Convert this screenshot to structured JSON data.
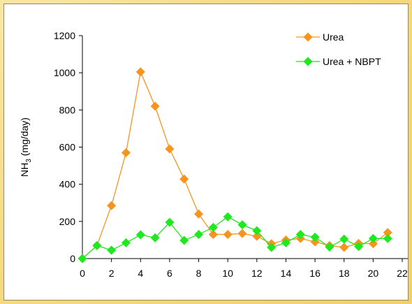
{
  "chart_data": {
    "type": "line",
    "title": "",
    "xlabel": "",
    "ylabel": {
      "main": "NH",
      "sub": "3",
      "rest": " (mg/day)"
    },
    "xlim": [
      0,
      22
    ],
    "ylim": [
      0,
      1200
    ],
    "x_ticks": [
      0,
      2,
      4,
      6,
      8,
      10,
      12,
      14,
      16,
      18,
      20,
      22
    ],
    "y_ticks": [
      0,
      200,
      400,
      600,
      800,
      1000,
      1200
    ],
    "grid": false,
    "legend_position": "top-right",
    "series": [
      {
        "name": "Urea",
        "color": "#f7941d",
        "marker": "diamond",
        "x": [
          0,
          1,
          2,
          3,
          4,
          5,
          6,
          7,
          8,
          9,
          10,
          11,
          12,
          13,
          14,
          15,
          16,
          17,
          18,
          19,
          20,
          21
        ],
        "y": [
          0,
          70,
          285,
          570,
          1005,
          820,
          590,
          428,
          240,
          130,
          130,
          135,
          120,
          80,
          100,
          108,
          90,
          70,
          60,
          82,
          80,
          140
        ]
      },
      {
        "name": "Urea + NBPT",
        "color": "#1ee81e",
        "marker": "diamond",
        "x": [
          0,
          1,
          2,
          3,
          4,
          5,
          6,
          7,
          8,
          9,
          10,
          11,
          12,
          13,
          14,
          15,
          16,
          17,
          18,
          19,
          20,
          21
        ],
        "y": [
          0,
          70,
          45,
          85,
          128,
          112,
          195,
          98,
          130,
          168,
          225,
          182,
          150,
          60,
          85,
          130,
          115,
          62,
          105,
          65,
          108,
          108
        ]
      }
    ]
  }
}
